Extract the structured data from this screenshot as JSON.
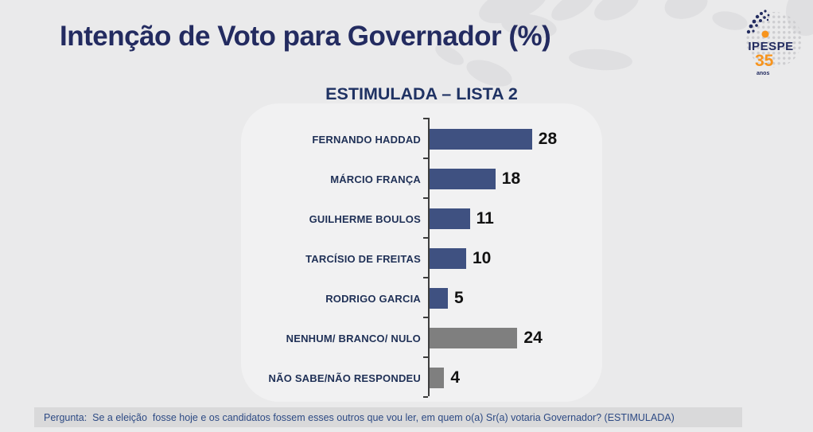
{
  "header": {
    "title": "Intenção de Voto para Governador (%)"
  },
  "logo": {
    "name": "IPESPE",
    "years": "35",
    "anos": "anos"
  },
  "chart_data": {
    "type": "bar",
    "orientation": "horizontal",
    "title": "ESTIMULADA – LISTA 2",
    "categories": [
      "FERNANDO HADDAD",
      "MÁRCIO FRANÇA",
      "GUILHERME BOULOS",
      "TARCÍSIO DE FREITAS",
      "RODRIGO GARCIA",
      "NENHUM/ BRANCO/ NULO",
      "NÃO SABE/NÃO RESPONDEU"
    ],
    "values": [
      28,
      18,
      11,
      10,
      5,
      24,
      4
    ],
    "bar_colors": [
      "#3F5181",
      "#3F5181",
      "#3F5181",
      "#3F5181",
      "#3F5181",
      "#7f7f7f",
      "#7f7f7f"
    ],
    "xlim": [
      0,
      30
    ],
    "value_labels_shown": true,
    "gridlines": false,
    "legend": null
  },
  "footer": {
    "question": "Pergunta:  Se a eleição  fosse hoje e os candidatos fossem esses outros que vou ler, em quem o(a) Sr(a) votaria Governador? (ESTIMULADA)"
  },
  "colors": {
    "background": "#eaeaeb",
    "card_background": "#f1f1f2",
    "title_navy": "#232b60",
    "subtitle_navy": "#1f3263",
    "bar_navy": "#3F5181",
    "bar_gray": "#7f7f7f",
    "value_black": "#121212",
    "footer_strip": "#d9d9da",
    "footer_text_blue": "#2d4a84",
    "logo_orange": "#f7941d"
  }
}
